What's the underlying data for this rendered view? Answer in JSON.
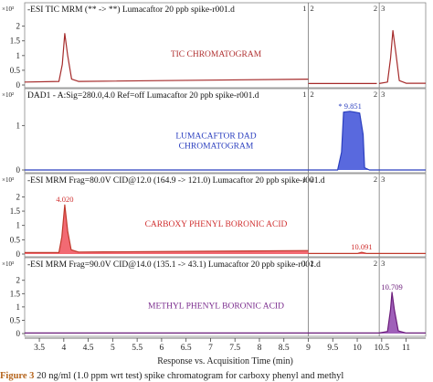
{
  "chart_data": {
    "type": "line",
    "x_range": [
      3.2,
      11.4
    ],
    "xlabel": "Response vs. Acquisition Time (min)",
    "x_ticks": [
      3.5,
      4,
      4.5,
      5,
      5.5,
      6,
      6.5,
      7,
      7.5,
      8,
      8.5,
      9,
      9.5,
      10,
      10.5,
      11
    ],
    "x_tick_labels": [
      "3.5",
      "4",
      "4.5",
      "5",
      "5.5",
      "6",
      "6.5",
      "7",
      "7.5",
      "8",
      "8.5",
      "9",
      "9.5",
      "10",
      "10.5",
      "11"
    ],
    "segment_breaks": [
      {
        "x": 9.0,
        "labels": [
          "1",
          "2"
        ]
      },
      {
        "x": 10.45,
        "labels": [
          "2",
          "3"
        ]
      }
    ],
    "panels": [
      {
        "title": "-ESI TIC MRM (** -> **) Lumacaftor 20 ppb spike-r001.d",
        "exp_label": "×10³",
        "annotation": "TIC CHROMATOGRAM",
        "annotation_color": "#b03030",
        "line_color": "#a52a2a",
        "fill": false,
        "ylim": [
          0,
          2.3
        ],
        "y_ticks": [
          0,
          0.5,
          1,
          1.5,
          2
        ],
        "y_tick_labels": [
          "0",
          "0.5",
          "1",
          "1.5",
          "2"
        ],
        "series": [
          {
            "x": [
              3.2,
              3.9,
              3.97,
              4.02,
              4.08,
              4.16,
              4.3,
              9.0
            ],
            "y": [
              0.1,
              0.12,
              0.7,
              1.75,
              1.0,
              0.2,
              0.12,
              0.2
            ]
          },
          {
            "x": [
              9.0,
              10.4
            ],
            "y": [
              0.05,
              0.05
            ]
          },
          {
            "x": [
              10.45,
              10.62,
              10.68,
              10.73,
              10.79,
              10.86,
              11.0,
              11.4
            ],
            "y": [
              0.05,
              0.1,
              0.9,
              1.85,
              1.1,
              0.15,
              0.06,
              0.06
            ]
          }
        ],
        "peak_labels": []
      },
      {
        "title": "DAD1 - A:Sig=280.0,4.0 Ref=off Lumacaftor 20 ppb spike-r001.d",
        "exp_label": "×10²",
        "annotation": [
          "LUMACAFTOR DAD",
          "CHROMATOGRAM"
        ],
        "annotation_color": "#2b3fbf",
        "line_color": "#2b3fbf",
        "fill": true,
        "fill_color": "#3c4fd8",
        "ylim": [
          0,
          1.5
        ],
        "y_ticks": [
          0,
          1
        ],
        "y_tick_labels": [
          "0",
          "1"
        ],
        "series": [
          {
            "x": [
              3.2,
              9.6,
              9.68,
              9.72,
              9.85,
              9.95,
              10.05,
              10.12,
              10.15,
              10.25,
              11.4
            ],
            "y": [
              0,
              0,
              0.4,
              1.3,
              1.32,
              1.3,
              1.28,
              0.8,
              0.05,
              0,
              0
            ]
          }
        ],
        "peak_labels": [
          {
            "x": 9.851,
            "y": 1.32,
            "text": "* 9.851",
            "color": "#2b3fbf"
          }
        ]
      },
      {
        "title": "-ESI MRM Frag=80.0V CID@12.0 (164.9 -> 121.0) Lumacaftor 20 ppb spike-r001.d",
        "exp_label": "×10³",
        "annotation": "CARBOXY PHENYL BORONIC ACID",
        "annotation_color": "#d03030",
        "line_color": "#c0392b",
        "fill": true,
        "fill_color": "#f0505a",
        "ylim": [
          0,
          2.3
        ],
        "y_ticks": [
          0,
          0.5,
          1,
          1.5,
          2
        ],
        "y_tick_labels": [
          "0",
          "0.5",
          "1",
          "1.5",
          "2"
        ],
        "series": [
          {
            "x": [
              3.2,
              3.9,
              3.96,
              4.02,
              4.08,
              4.15,
              4.3,
              9.0
            ],
            "y": [
              0.05,
              0.05,
              0.6,
              1.72,
              0.8,
              0.15,
              0.07,
              0.12
            ]
          },
          {
            "x": [
              9.0,
              10.0,
              10.09,
              10.2,
              11.4
            ],
            "y": [
              0.02,
              0.02,
              0.06,
              0.02,
              0.02
            ]
          }
        ],
        "peak_labels": [
          {
            "x": 4.02,
            "y": 1.72,
            "text": "4.020",
            "color": "#d03030"
          },
          {
            "x": 10.091,
            "y": 0.06,
            "text": "10.091",
            "color": "#d03030"
          }
        ]
      },
      {
        "title": "-ESI MRM Frag=90.0V CID@14.0 (135.1 -> 43.1) Lumacaftor 20 ppb spike-r001.d",
        "exp_label": "×10³",
        "annotation": "METHYL PHENYL BORONIC ACID",
        "annotation_color": "#7b2d8e",
        "line_color": "#6a1b7a",
        "fill": true,
        "fill_color": "#8e44ad",
        "ylim": [
          0,
          2.3
        ],
        "y_ticks": [
          0,
          0.5,
          1,
          1.5,
          2
        ],
        "y_tick_labels": [
          "0",
          "0.5",
          "1",
          "1.5",
          "2"
        ],
        "series": [
          {
            "x": [
              3.2,
              9.0
            ],
            "y": [
              0.02,
              0.02
            ]
          },
          {
            "x": [
              9.0,
              10.45,
              10.62,
              10.68,
              10.71,
              10.76,
              10.84,
              11.0,
              11.4
            ],
            "y": [
              0.02,
              0.02,
              0.08,
              0.9,
              1.55,
              0.9,
              0.1,
              0.02,
              0.02
            ]
          }
        ],
        "peak_labels": [
          {
            "x": 10.709,
            "y": 1.55,
            "text": "10.709",
            "color": "#6a1b7a"
          }
        ]
      }
    ]
  },
  "caption": {
    "label": "Figure 3",
    "text": "20 ng/ml (1.0 ppm wrt test) spike chromatogram for carboxy phenyl and methyl"
  }
}
